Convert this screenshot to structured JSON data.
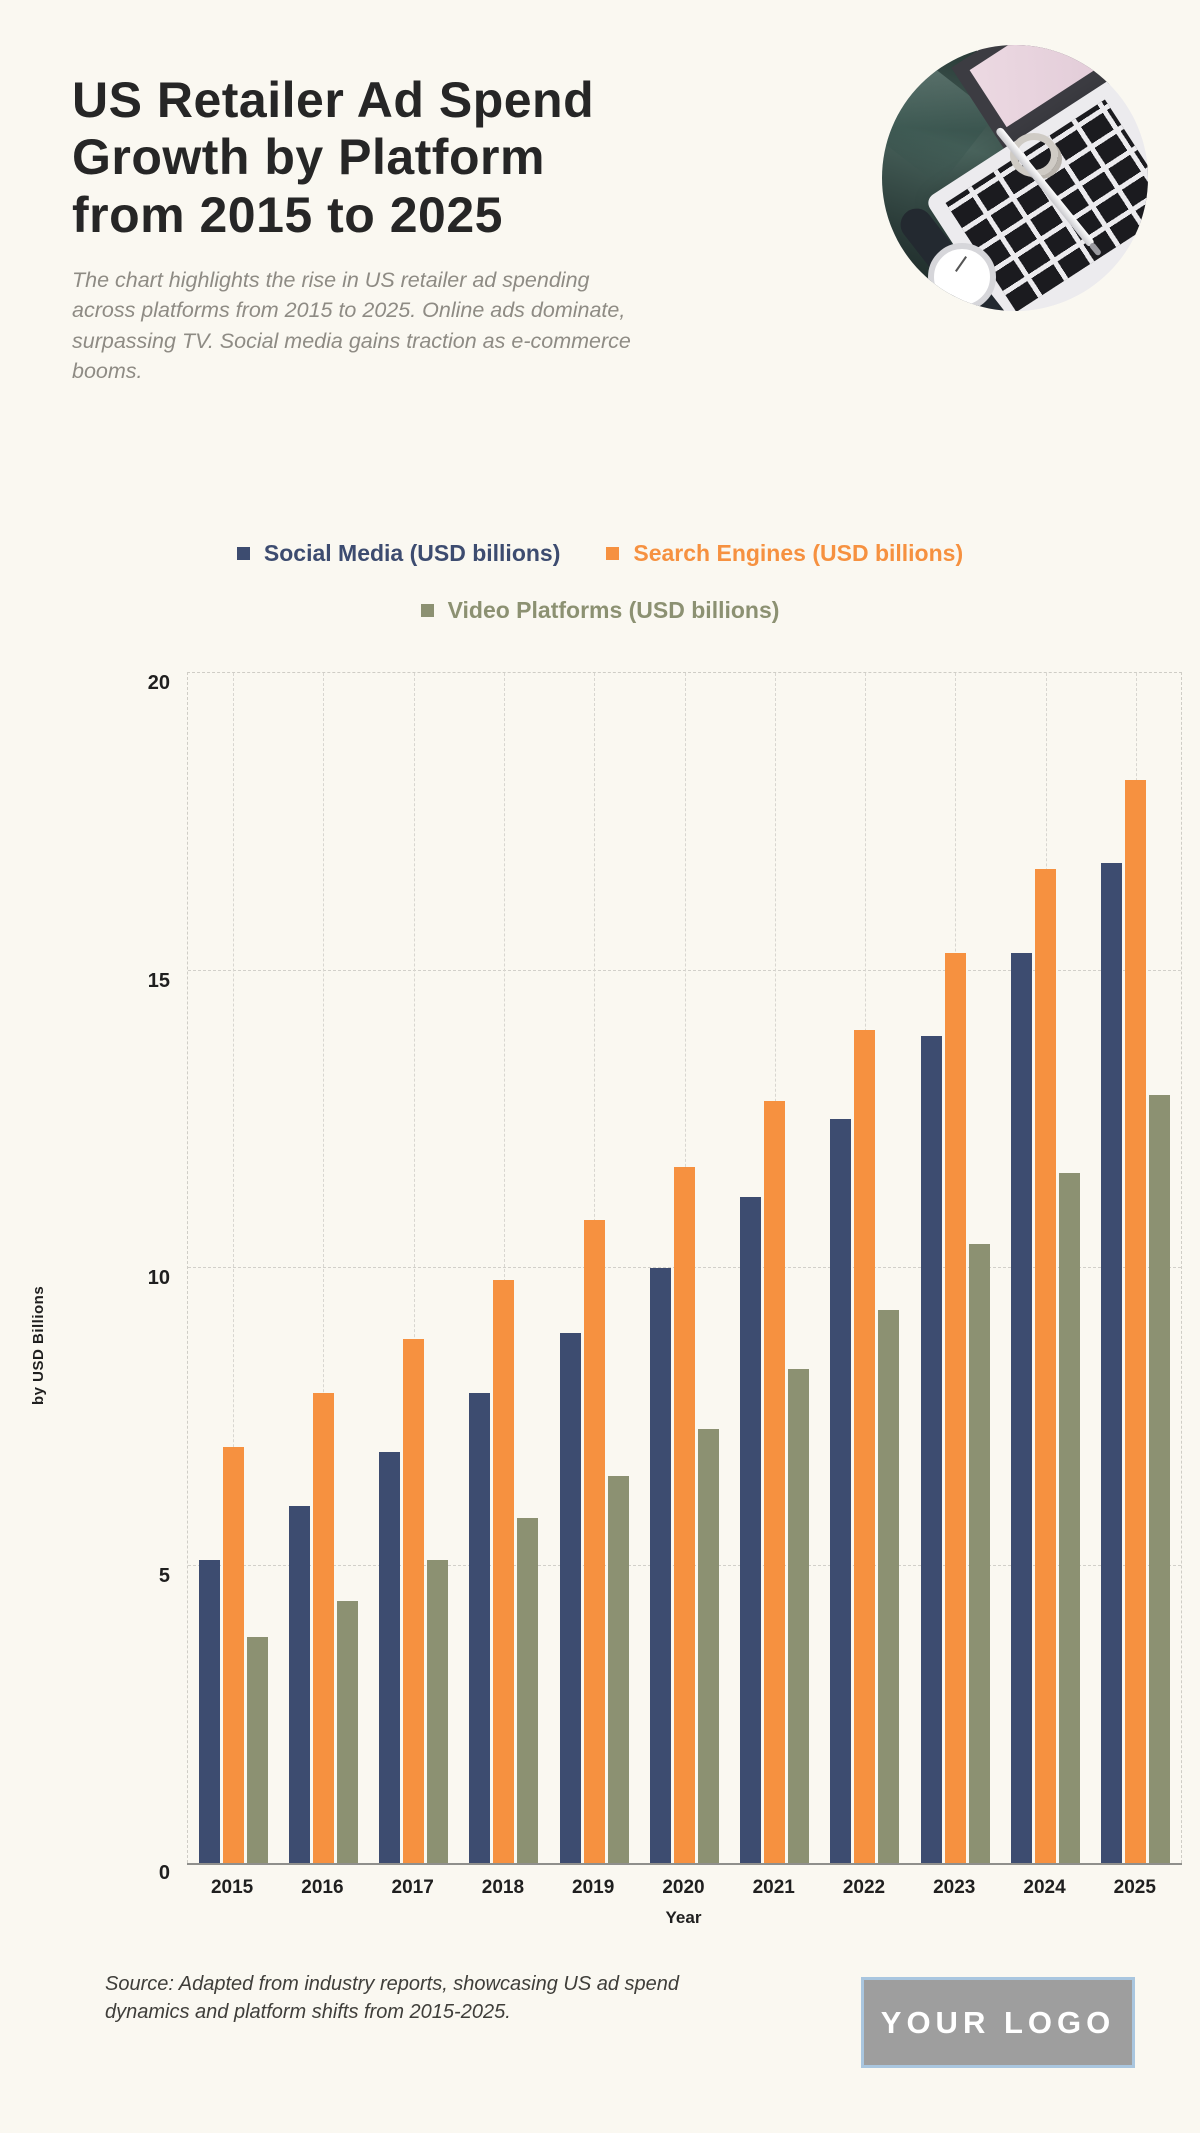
{
  "page": {
    "background": "#FAF8F1"
  },
  "header": {
    "title": "US Retailer Ad Spend Growth by Platform from 2015 to 2025",
    "subtitle": "The chart highlights the rise in US retailer ad spending across platforms from 2015 to 2025. Online ads dominate, surpassing TV. Social media gains traction as e-commerce booms."
  },
  "chart_data": {
    "type": "bar",
    "categories": [
      "2015",
      "2016",
      "2017",
      "2018",
      "2019",
      "2020",
      "2021",
      "2022",
      "2023",
      "2024",
      "2025"
    ],
    "series": [
      {
        "name": "Social Media (USD billions)",
        "color": "#3D4C70",
        "values": [
          5.1,
          6.0,
          6.9,
          7.9,
          8.9,
          10.0,
          11.2,
          12.5,
          13.9,
          15.3,
          16.8
        ]
      },
      {
        "name": "Search Engines (USD billions)",
        "color": "#F69140",
        "values": [
          7.0,
          7.9,
          8.8,
          9.8,
          10.8,
          11.7,
          12.8,
          14.0,
          15.3,
          16.7,
          18.2
        ]
      },
      {
        "name": "Video Platforms (USD billions)",
        "color": "#8C9172",
        "values": [
          3.8,
          4.4,
          5.1,
          5.8,
          6.5,
          7.3,
          8.3,
          9.3,
          10.4,
          11.6,
          12.9
        ]
      }
    ],
    "title": "US Retailer Ad Spend Growth by Platform from 2015 to 2025",
    "xlabel": "Year",
    "ylabel": "by USD Billions",
    "ylim": [
      0,
      20
    ],
    "yticks": [
      0,
      5,
      10,
      15,
      20
    ],
    "grid": true,
    "legend_position": "top"
  },
  "footer": {
    "source": "Source: Adapted from industry reports, showcasing US ad spend dynamics and platform shifts from 2015-2025.",
    "logo_text": "YOUR LOGO"
  }
}
